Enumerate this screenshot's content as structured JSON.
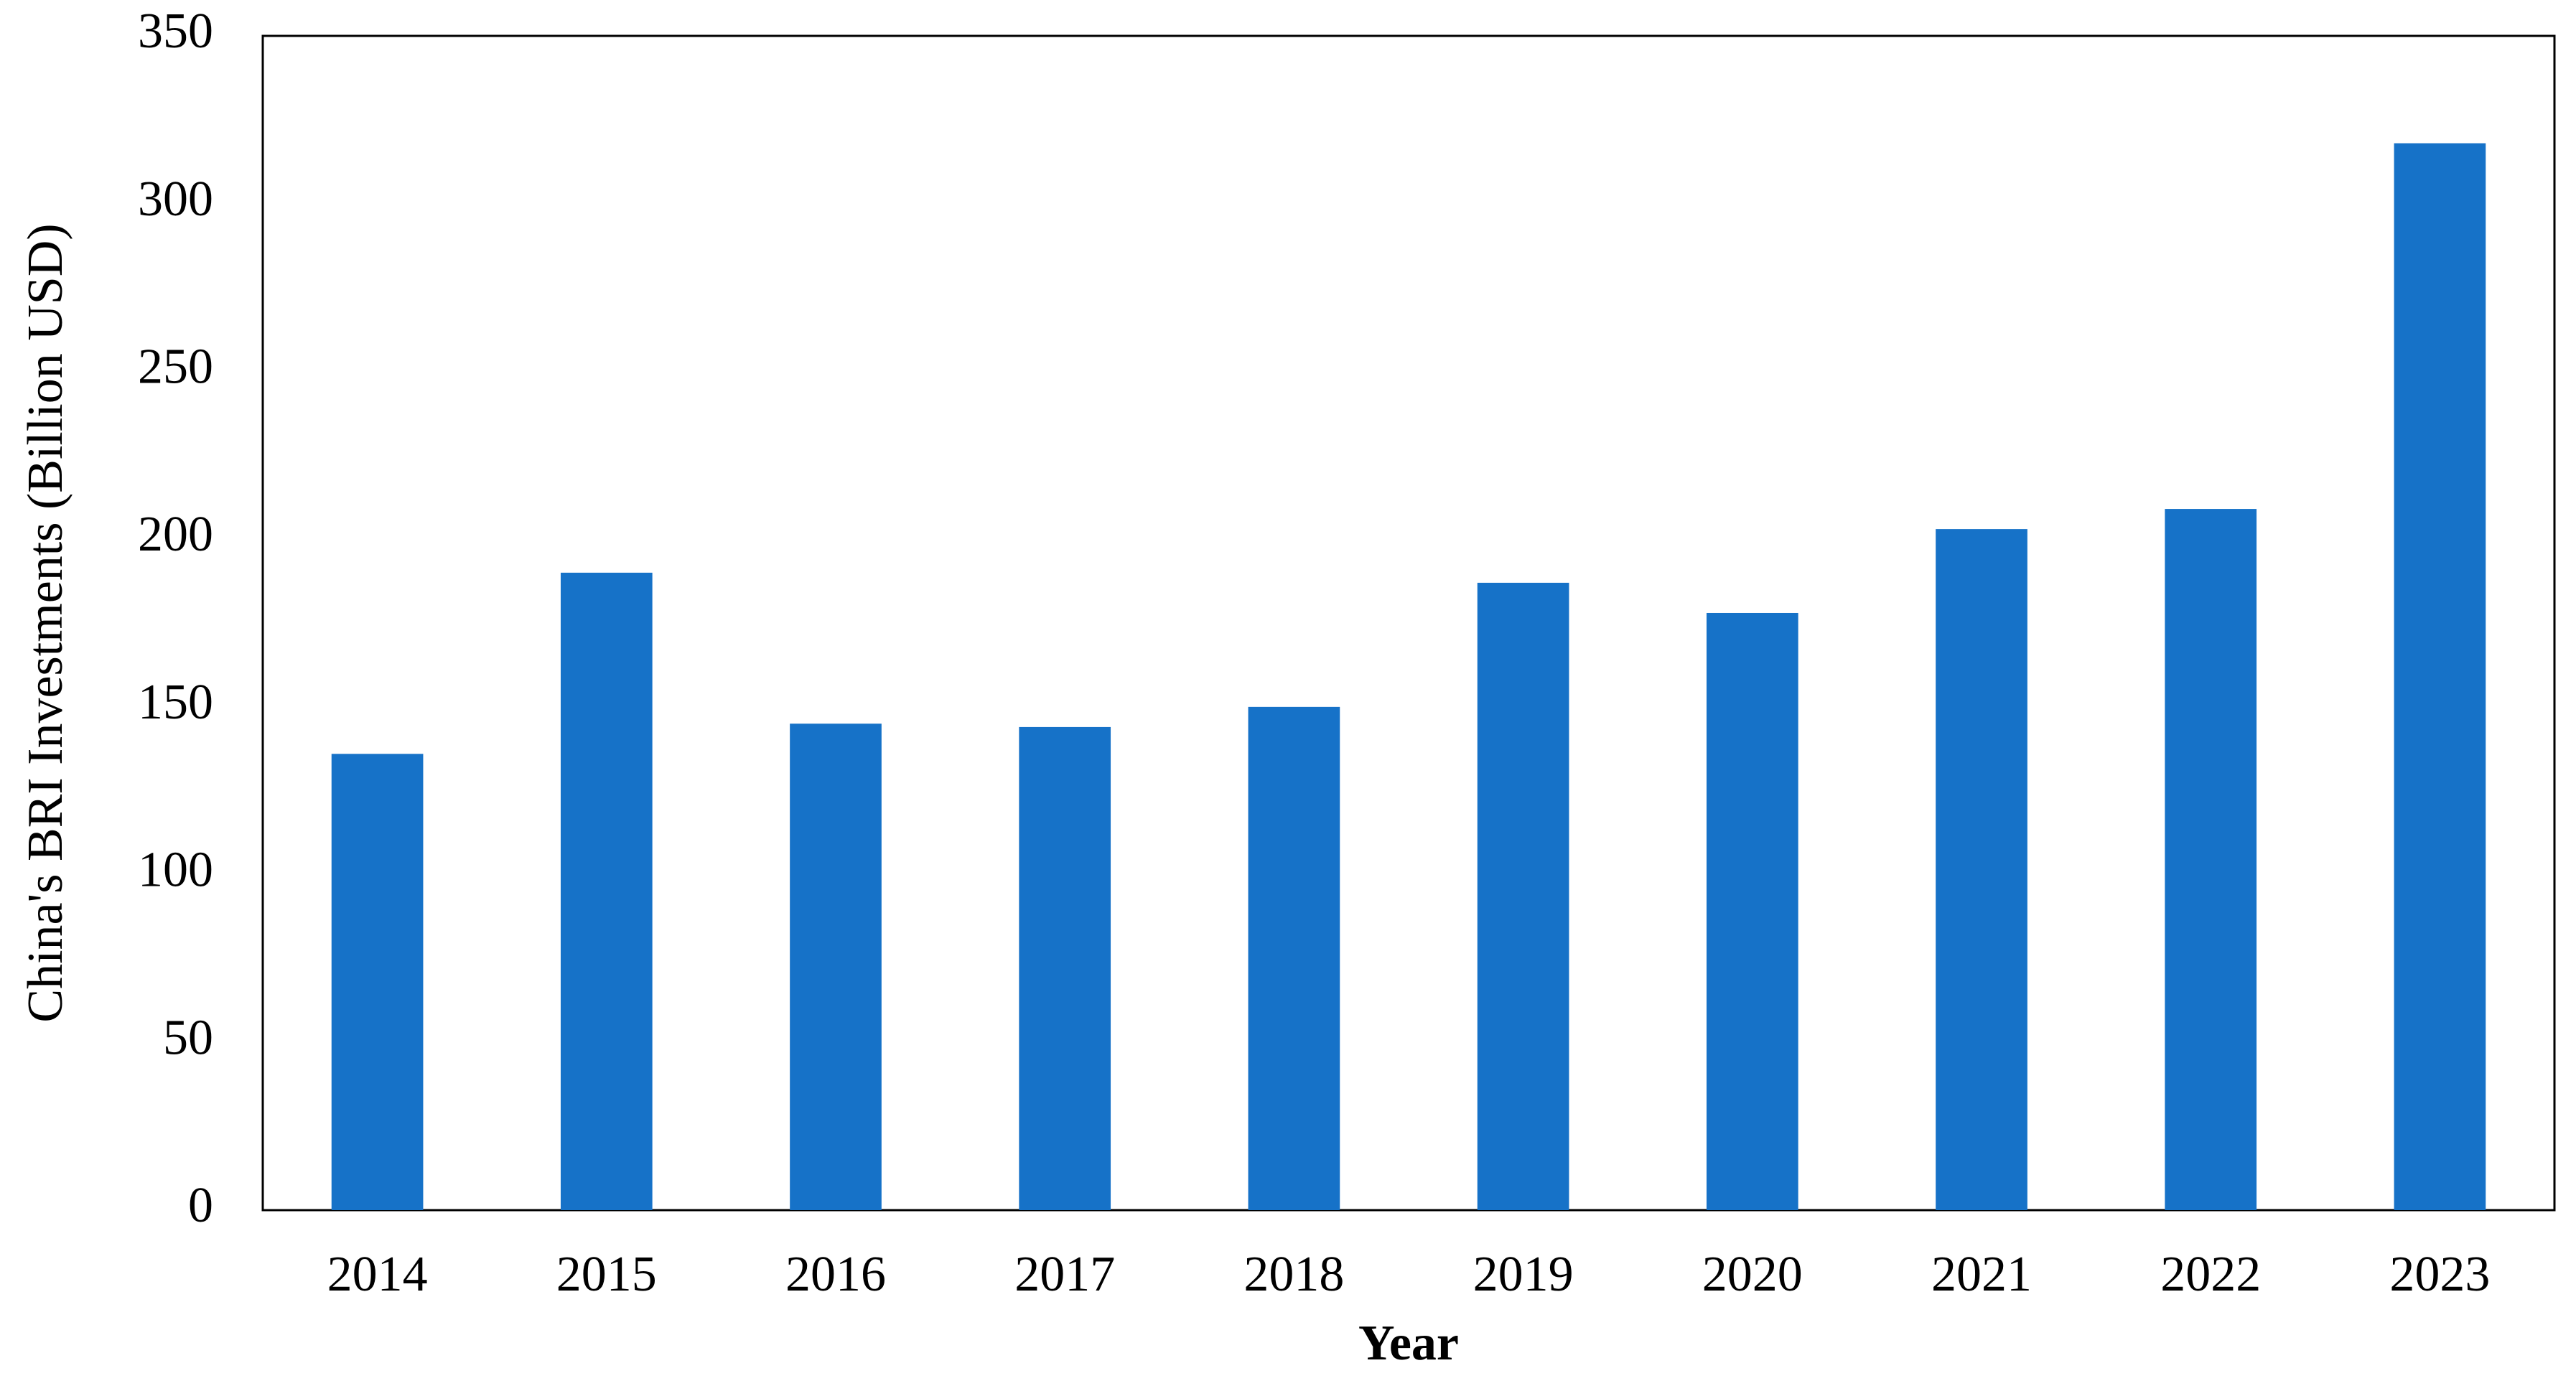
{
  "chart_data": {
    "type": "bar",
    "x_label": "Year",
    "y_label": "China's BRI Investments (Billion  USD)",
    "categories": [
      "2014",
      "2015",
      "2016",
      "2017",
      "2018",
      "2019",
      "2020",
      "2021",
      "2022",
      "2023"
    ],
    "values": [
      136,
      190,
      145,
      144,
      150,
      187,
      178,
      203,
      209,
      318
    ],
    "color": "#1672c8",
    "ylim": [
      0,
      350
    ],
    "yticks": [
      0,
      50,
      100,
      150,
      200,
      250,
      300,
      350
    ],
    "grid": false
  }
}
